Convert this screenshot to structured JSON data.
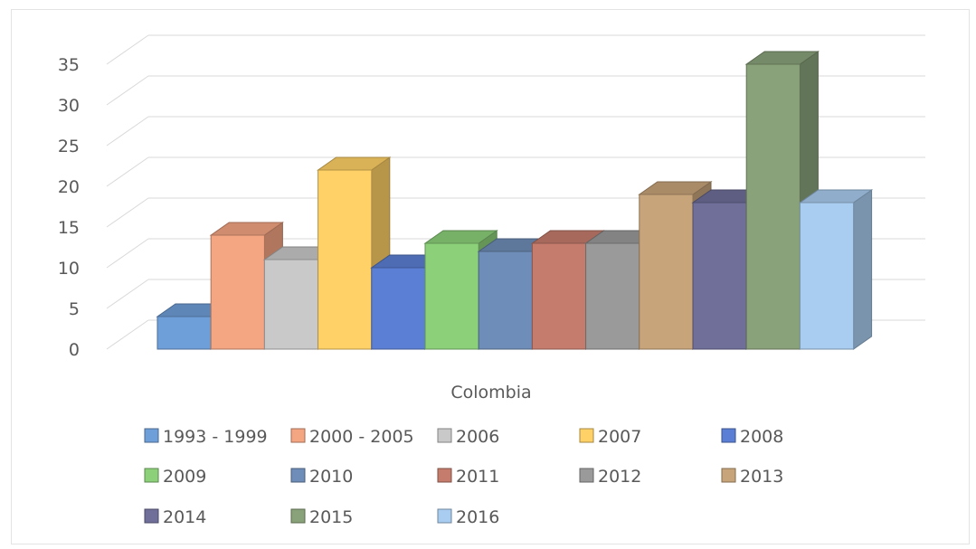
{
  "chart_data": {
    "type": "bar",
    "style": "3d-clustered-column",
    "categories": [
      "Colombia"
    ],
    "series": [
      {
        "name": "1993 - 1999",
        "values": [
          4
        ],
        "color": "#6f9fd8"
      },
      {
        "name": "2000 - 2005",
        "values": [
          14
        ],
        "color": "#f4a582"
      },
      {
        "name": "2006",
        "values": [
          11
        ],
        "color": "#c9c9c9"
      },
      {
        "name": "2007",
        "values": [
          22
        ],
        "color": "#ffd166"
      },
      {
        "name": "2008",
        "values": [
          10
        ],
        "color": "#5b7fd4"
      },
      {
        "name": "2009",
        "values": [
          13
        ],
        "color": "#8cd07a"
      },
      {
        "name": "2010",
        "values": [
          12
        ],
        "color": "#6e8db8"
      },
      {
        "name": "2011",
        "values": [
          13
        ],
        "color": "#c57c6c"
      },
      {
        "name": "2012",
        "values": [
          13
        ],
        "color": "#9a9a9a"
      },
      {
        "name": "2013",
        "values": [
          19
        ],
        "color": "#c8a47a"
      },
      {
        "name": "2014",
        "values": [
          18
        ],
        "color": "#6f6f9a"
      },
      {
        "name": "2015",
        "values": [
          35
        ],
        "color": "#8aa27a"
      },
      {
        "name": "2016",
        "values": [
          18
        ],
        "color": "#a9cdf0"
      }
    ],
    "yticks": [
      "0",
      "5",
      "10",
      "15",
      "20",
      "25",
      "30",
      "35"
    ],
    "ylim": [
      0,
      35
    ],
    "grid": true,
    "legend_position": "bottom"
  }
}
